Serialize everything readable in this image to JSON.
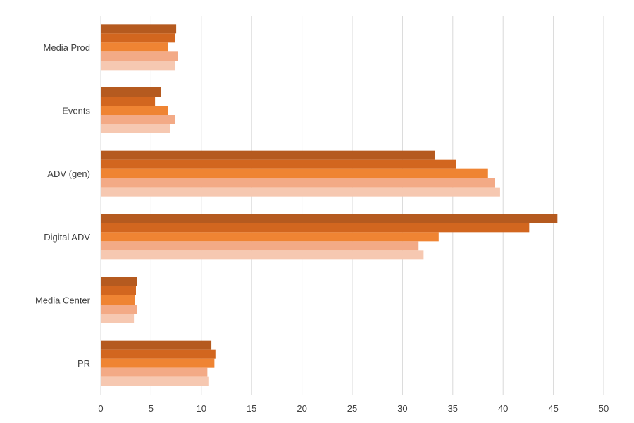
{
  "chart_data": {
    "type": "bar",
    "orientation": "horizontal",
    "categories": [
      "Media Prod",
      "Events",
      "ADV (gen)",
      "Digital ADV",
      "Media Center",
      "PR"
    ],
    "series": [
      {
        "color": "#b55a1f",
        "values": [
          7.5,
          6.0,
          33.2,
          45.4,
          3.6,
          11.0
        ]
      },
      {
        "color": "#d2661f",
        "values": [
          7.4,
          5.4,
          35.3,
          42.6,
          3.5,
          11.4
        ]
      },
      {
        "color": "#ef8433",
        "values": [
          6.7,
          6.7,
          38.5,
          33.6,
          3.4,
          11.3
        ]
      },
      {
        "color": "#f3aa86",
        "values": [
          7.7,
          7.4,
          39.2,
          31.6,
          3.6,
          10.6
        ]
      },
      {
        "color": "#f6c8b1",
        "values": [
          7.4,
          6.9,
          39.7,
          32.1,
          3.3,
          10.7
        ]
      }
    ],
    "xlim": [
      0,
      50
    ],
    "xticks": [
      "0",
      "5",
      "10",
      "15",
      "20",
      "25",
      "30",
      "35",
      "40",
      "45",
      "50"
    ],
    "grid": true,
    "legend": "none"
  }
}
